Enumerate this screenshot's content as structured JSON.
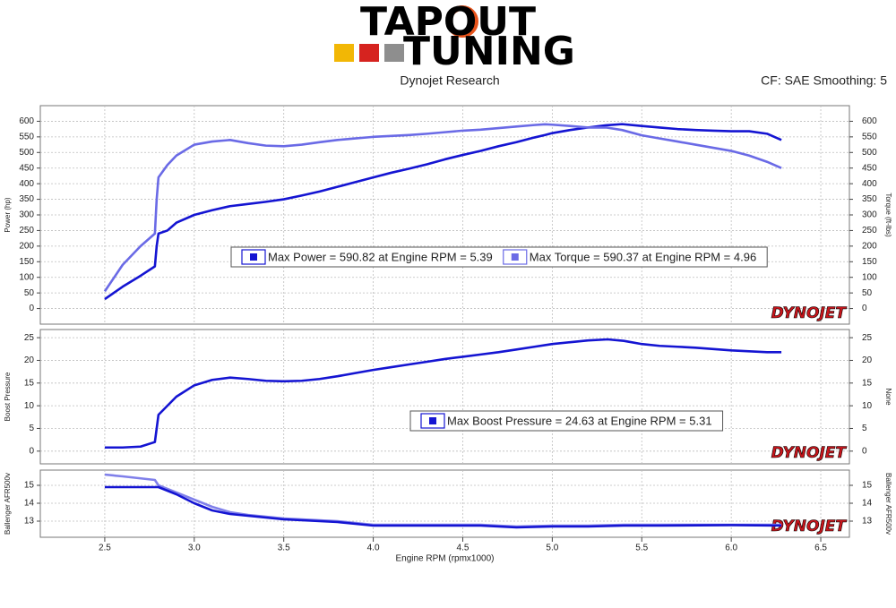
{
  "header": {
    "logo_line1": "TAPOUT",
    "logo_line2": "TUNING",
    "subtitle": "Dynojet Research",
    "settings": "CF: SAE Smoothing: 5"
  },
  "chart_data": [
    {
      "type": "line",
      "ylabel": "Power (hp)",
      "y2label": "Torque (ft-lbs)",
      "watermark": "DYNOJET",
      "xlim": [
        2.14,
        6.66
      ],
      "ylim": [
        -50,
        650
      ],
      "y2lim": [
        -50,
        650
      ],
      "yticks": [
        0,
        50,
        100,
        150,
        200,
        250,
        300,
        350,
        400,
        450,
        500,
        550,
        600
      ],
      "y2ticks": [
        0,
        50,
        100,
        150,
        200,
        250,
        300,
        350,
        400,
        450,
        500,
        550,
        600
      ],
      "grid": true,
      "x": [
        2.5,
        2.6,
        2.7,
        2.78,
        2.79,
        2.8,
        2.85,
        2.9,
        3.0,
        3.1,
        3.2,
        3.3,
        3.4,
        3.5,
        3.6,
        3.7,
        3.8,
        3.9,
        4.0,
        4.1,
        4.2,
        4.3,
        4.4,
        4.5,
        4.6,
        4.7,
        4.8,
        4.9,
        4.96,
        5.0,
        5.1,
        5.2,
        5.3,
        5.39,
        5.5,
        5.6,
        5.7,
        5.8,
        5.9,
        6.0,
        6.1,
        6.2,
        6.28
      ],
      "series": [
        {
          "name": "Max Power = 590.82 at Engine RPM = 5.39",
          "color": "#1414d2",
          "values": [
            30,
            70,
            105,
            135,
            200,
            240,
            250,
            275,
            300,
            315,
            328,
            335,
            342,
            350,
            362,
            375,
            390,
            405,
            420,
            435,
            448,
            462,
            478,
            492,
            505,
            520,
            533,
            548,
            556,
            562,
            572,
            580,
            587,
            590.82,
            585,
            580,
            575,
            572,
            570,
            568,
            568,
            560,
            540
          ]
        },
        {
          "name": "Max Torque = 590.37 at Engine RPM = 4.96",
          "color": "#6a6ae6",
          "axis": "y2",
          "values": [
            55,
            140,
            200,
            240,
            350,
            420,
            460,
            490,
            525,
            535,
            540,
            530,
            522,
            520,
            525,
            533,
            540,
            545,
            550,
            553,
            556,
            560,
            565,
            570,
            573,
            578,
            583,
            588,
            590.37,
            589,
            585,
            580,
            580,
            572,
            555,
            545,
            535,
            525,
            515,
            505,
            490,
            470,
            450
          ]
        }
      ]
    },
    {
      "type": "line",
      "ylabel": "Boost Pressure",
      "y2label": "None",
      "watermark": "DYNOJET",
      "xlim": [
        2.14,
        6.66
      ],
      "ylim": [
        -2.8,
        26.8
      ],
      "y2lim": [
        -2.8,
        26.8
      ],
      "yticks": [
        0,
        5,
        10,
        15,
        20,
        25
      ],
      "y2ticks": [
        0,
        5,
        10,
        15,
        20,
        25
      ],
      "grid": true,
      "x": [
        2.5,
        2.6,
        2.7,
        2.78,
        2.79,
        2.8,
        2.85,
        2.9,
        3.0,
        3.1,
        3.2,
        3.3,
        3.4,
        3.5,
        3.6,
        3.7,
        3.8,
        3.9,
        4.0,
        4.1,
        4.2,
        4.3,
        4.4,
        4.5,
        4.6,
        4.7,
        4.8,
        4.9,
        5.0,
        5.1,
        5.2,
        5.31,
        5.4,
        5.5,
        5.6,
        5.7,
        5.8,
        5.9,
        6.0,
        6.1,
        6.2,
        6.28
      ],
      "series": [
        {
          "name": "Max Boost Pressure = 24.63 at Engine RPM = 5.31",
          "color": "#1414d2",
          "values": [
            0.8,
            0.8,
            1.0,
            2,
            5,
            8,
            10,
            12,
            14.5,
            15.7,
            16.2,
            15.9,
            15.5,
            15.4,
            15.5,
            15.9,
            16.5,
            17.2,
            17.9,
            18.5,
            19.1,
            19.7,
            20.3,
            20.8,
            21.3,
            21.8,
            22.4,
            23.0,
            23.6,
            24.0,
            24.4,
            24.63,
            24.3,
            23.6,
            23.2,
            23.0,
            22.8,
            22.5,
            22.2,
            22.0,
            21.8,
            21.8
          ]
        }
      ]
    },
    {
      "type": "line",
      "ylabel": "Ballenger AFR500v",
      "y2label": "Ballenger AFR500v",
      "xlabel": "Engine RPM (rpmx1000)",
      "watermark": "DYNOJET",
      "xlim": [
        2.14,
        6.66
      ],
      "ylim": [
        12.1,
        15.85
      ],
      "y2lim": [
        12.1,
        15.85
      ],
      "yticks": [
        13,
        14,
        15
      ],
      "y2ticks": [
        13,
        14,
        15
      ],
      "grid": true,
      "xticks": [
        2.5,
        {
          "value": 3,
          "label": "3.0"
        },
        3.5,
        {
          "value": 4,
          "label": "4.0"
        },
        4.5,
        {
          "value": 5,
          "label": "5.0"
        },
        5.5,
        {
          "value": 6,
          "label": "6.0"
        },
        6.5
      ],
      "x": [
        2.5,
        2.6,
        2.78,
        2.8,
        2.9,
        3.0,
        3.1,
        3.2,
        3.3,
        3.4,
        3.5,
        3.6,
        3.7,
        3.8,
        3.9,
        4.0,
        4.2,
        4.4,
        4.6,
        4.8,
        5.0,
        5.2,
        5.4,
        5.6,
        6.0,
        6.28
      ],
      "series": [
        {
          "color": "#8080ea",
          "values": [
            15.6,
            15.5,
            15.3,
            15.0,
            14.6,
            14.2,
            13.8,
            13.5,
            13.35,
            13.25,
            13.15,
            13.1,
            13.05,
            13.0,
            12.9,
            12.8,
            12.8,
            12.8,
            12.8,
            12.7,
            12.75,
            12.75,
            12.8,
            12.8,
            12.8,
            12.8
          ]
        },
        {
          "color": "#1414d2",
          "values": [
            14.9,
            14.9,
            14.9,
            14.9,
            14.5,
            14.0,
            13.6,
            13.4,
            13.3,
            13.2,
            13.1,
            13.05,
            13.0,
            12.95,
            12.85,
            12.75,
            12.75,
            12.75,
            12.75,
            12.65,
            12.7,
            12.7,
            12.75,
            12.75,
            12.78,
            12.75
          ]
        }
      ]
    }
  ]
}
